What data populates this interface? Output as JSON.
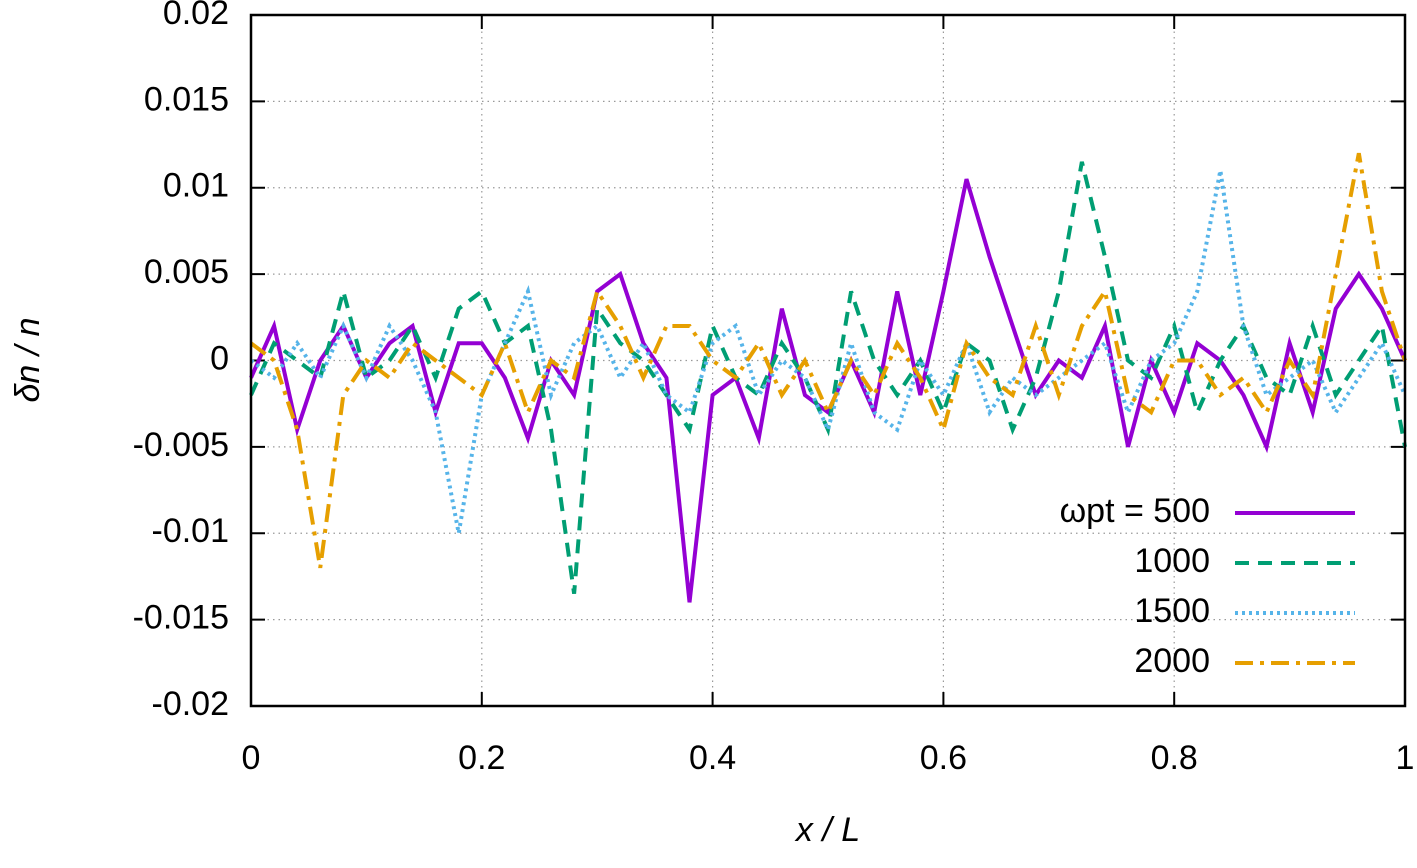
{
  "chart_data": {
    "type": "line",
    "xlabel": "x / L",
    "ylabel": "δn / n",
    "x": [
      0,
      0.02,
      0.04,
      0.06,
      0.08,
      0.1,
      0.12,
      0.14,
      0.16,
      0.18,
      0.2,
      0.22,
      0.24,
      0.26,
      0.28,
      0.3,
      0.32,
      0.34,
      0.36,
      0.38,
      0.4,
      0.42,
      0.44,
      0.46,
      0.48,
      0.5,
      0.52,
      0.54,
      0.56,
      0.58,
      0.6,
      0.62,
      0.64,
      0.66,
      0.68,
      0.7,
      0.72,
      0.74,
      0.76,
      0.78,
      0.8,
      0.82,
      0.84,
      0.86,
      0.88,
      0.9,
      0.92,
      0.94,
      0.96,
      0.98,
      1
    ],
    "series": [
      {
        "name": "ωpt = 500",
        "color": "#9400d3",
        "dash": "solid",
        "values": [
          -0.001,
          0.002,
          -0.004,
          0,
          0.002,
          -0.001,
          0.001,
          0.002,
          -0.003,
          0.001,
          0.001,
          -0.001,
          -0.0045,
          0,
          -0.002,
          0.004,
          0.005,
          0.001,
          -0.001,
          -0.014,
          -0.002,
          -0.001,
          -0.0045,
          0.003,
          -0.002,
          -0.003,
          0,
          -0.003,
          0.004,
          -0.002,
          0.004,
          0.0105,
          0.006,
          0.002,
          -0.002,
          0,
          -0.001,
          0.002,
          -0.005,
          0,
          -0.003,
          0.001,
          0,
          -0.002,
          -0.005,
          0.001,
          -0.003,
          0.003,
          0.005,
          0.003,
          0
        ]
      },
      {
        "name": "1000",
        "color": "#009e73",
        "dash": "dashed",
        "values": [
          -0.002,
          0.001,
          0,
          -0.001,
          0.004,
          -0.001,
          0,
          0.002,
          -0.001,
          0.003,
          0.004,
          0.001,
          0.002,
          -0.004,
          -0.0135,
          0.003,
          0.001,
          0,
          -0.002,
          -0.004,
          0.002,
          -0.001,
          -0.002,
          0.001,
          -0.001,
          -0.004,
          0.004,
          0,
          -0.002,
          0,
          -0.003,
          0.001,
          0,
          -0.004,
          -0.001,
          0.004,
          0.0115,
          0.006,
          0,
          -0.001,
          0.002,
          -0.003,
          0,
          0.002,
          -0.001,
          -0.002,
          0.002,
          -0.002,
          0,
          0.002,
          -0.005
        ]
      },
      {
        "name": "1500",
        "color": "#56b4e9",
        "dash": "dotted",
        "values": [
          0,
          -0.001,
          0.001,
          -0.001,
          0.002,
          -0.001,
          0.002,
          0,
          -0.003,
          -0.01,
          -0.002,
          0.001,
          0.004,
          -0.002,
          0.001,
          0.002,
          -0.001,
          0.001,
          -0.002,
          -0.003,
          0.001,
          0.002,
          -0.002,
          0,
          -0.001,
          -0.004,
          0.001,
          -0.003,
          -0.004,
          0,
          -0.002,
          0.001,
          -0.003,
          -0.001,
          -0.002,
          -0.001,
          0,
          0.001,
          -0.003,
          0,
          0.001,
          0.004,
          0.011,
          0.002,
          -0.002,
          -0.001,
          0,
          -0.003,
          -0.001,
          0.001,
          -0.002
        ]
      },
      {
        "name": "2000",
        "color": "#e69f00",
        "dash": "dashdot",
        "values": [
          0.001,
          0,
          -0.004,
          -0.012,
          -0.002,
          0,
          -0.001,
          0.001,
          0,
          -0.001,
          -0.002,
          0.001,
          -0.003,
          0,
          -0.001,
          0.004,
          0.002,
          -0.001,
          0.002,
          0.002,
          0,
          -0.001,
          0.001,
          -0.002,
          0,
          -0.003,
          0,
          -0.002,
          0.001,
          -0.001,
          -0.004,
          0.001,
          -0.001,
          -0.002,
          0.002,
          -0.002,
          0.002,
          0.004,
          -0.002,
          -0.003,
          0,
          0,
          -0.002,
          -0.001,
          -0.003,
          0,
          -0.002,
          0.005,
          0.012,
          0.004,
          0
        ]
      }
    ],
    "xlim": [
      0,
      1
    ],
    "ylim": [
      -0.02,
      0.02
    ],
    "xticks": [
      0,
      0.2,
      0.4,
      0.6,
      0.8,
      1
    ],
    "yticks": [
      -0.02,
      -0.015,
      -0.01,
      -0.005,
      0,
      0.005,
      0.01,
      0.015,
      0.02
    ],
    "grid": true,
    "legend_position": "lower right"
  }
}
